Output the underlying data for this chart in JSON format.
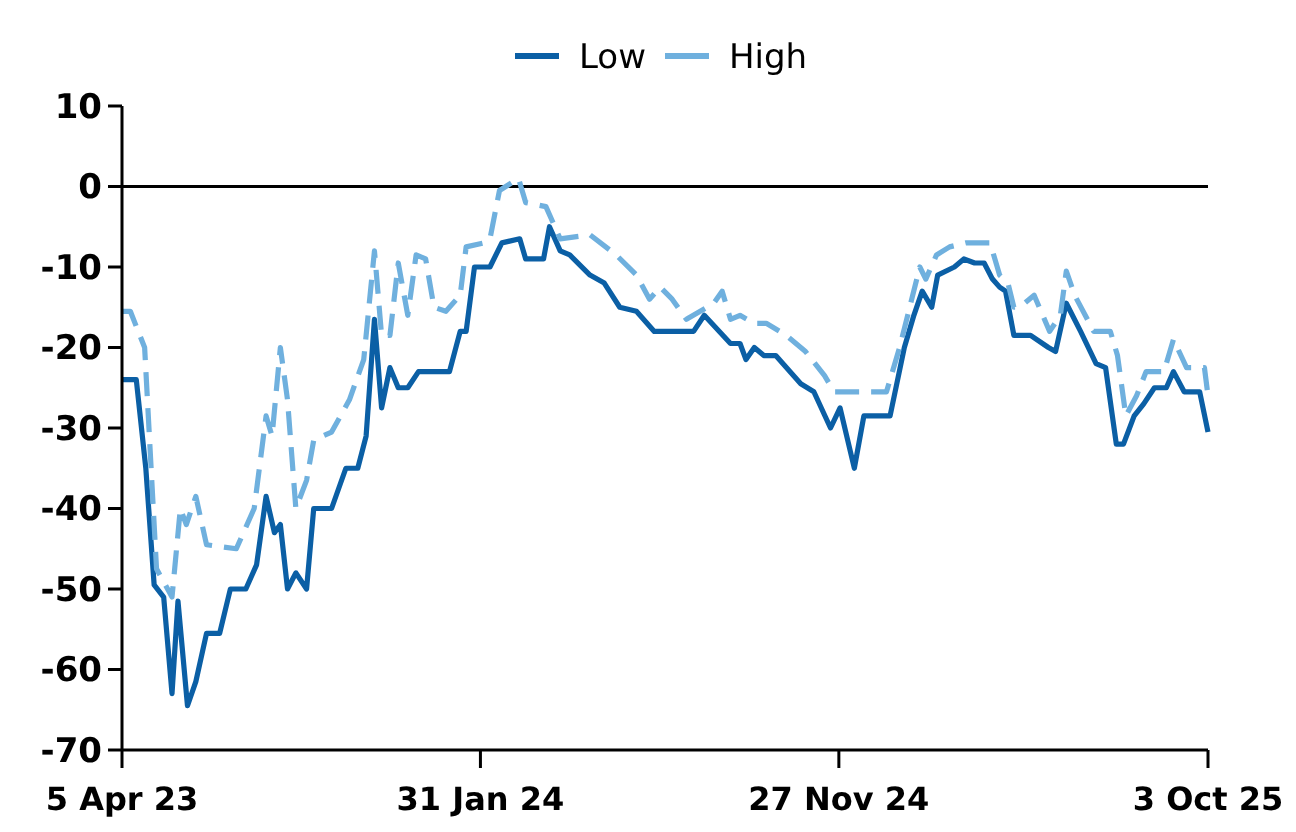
{
  "chart_data": {
    "type": "line",
    "legend": "top",
    "marker": "none",
    "grid": false,
    "xlim": [
      "2023-04-05",
      "2025-10-03"
    ],
    "xticks": [
      {
        "value": "2023-04-05",
        "label": "5 Apr 23"
      },
      {
        "value": "2024-01-31",
        "label": "31 Jan 24"
      },
      {
        "value": "2024-11-27",
        "label": "27 Nov 24"
      },
      {
        "value": "2025-10-03",
        "label": "3 Oct 25"
      }
    ],
    "ylim": [
      -70,
      10
    ],
    "yticks": [
      10,
      0,
      -10,
      -20,
      -30,
      -40,
      -50,
      -60,
      -70
    ],
    "ref_lines": [
      {
        "axis": "y",
        "value": 0,
        "color": "#000000"
      }
    ],
    "series": [
      {
        "name": "Low",
        "color": "#0b5fa5",
        "line_style": "solid",
        "x": [
          "2023-04-05",
          "2023-04-17",
          "2023-04-25",
          "2023-05-02",
          "2023-05-10",
          "2023-05-17",
          "2023-05-22",
          "2023-05-30",
          "2023-06-06",
          "2023-06-15",
          "2023-06-26",
          "2023-07-05",
          "2023-07-18",
          "2023-07-27",
          "2023-08-04",
          "2023-08-11",
          "2023-08-16",
          "2023-08-22",
          "2023-08-29",
          "2023-09-07",
          "2023-09-13",
          "2023-09-28",
          "2023-10-10",
          "2023-10-20",
          "2023-10-27",
          "2023-11-03",
          "2023-11-09",
          "2023-11-16",
          "2023-11-23",
          "2023-12-01",
          "2023-12-10",
          "2024-01-05",
          "2024-01-14",
          "2024-01-19",
          "2024-01-26",
          "2024-02-08",
          "2024-02-18",
          "2024-03-04",
          "2024-03-09",
          "2024-03-24",
          "2024-03-29",
          "2024-04-07",
          "2024-04-15",
          "2024-05-02",
          "2024-05-14",
          "2024-05-27",
          "2024-06-10",
          "2024-06-25",
          "2024-07-28",
          "2024-08-06",
          "2024-08-28",
          "2024-09-05",
          "2024-09-10",
          "2024-09-17",
          "2024-09-25",
          "2024-10-05",
          "2024-10-26",
          "2024-11-06",
          "2024-11-20",
          "2024-11-28",
          "2024-12-10",
          "2024-12-18",
          "2025-01-09",
          "2025-01-21",
          "2025-01-29",
          "2025-02-05",
          "2025-02-13",
          "2025-02-18",
          "2025-03-04",
          "2025-03-12",
          "2025-03-21",
          "2025-03-29",
          "2025-04-05",
          "2025-04-11",
          "2025-04-16",
          "2025-04-23",
          "2025-05-07",
          "2025-05-22",
          "2025-05-28",
          "2025-06-06",
          "2025-06-18",
          "2025-07-01",
          "2025-07-09",
          "2025-07-18",
          "2025-07-24",
          "2025-08-02",
          "2025-08-10",
          "2025-08-19",
          "2025-08-29",
          "2025-09-04",
          "2025-09-13",
          "2025-09-26",
          "2025-10-03"
        ],
        "values": [
          -24,
          -24,
          -35,
          -49.5,
          -51,
          -63,
          -51.5,
          -64.5,
          -61.5,
          -55.5,
          -55.5,
          -50,
          -50,
          -47,
          -38.5,
          -43,
          -42,
          -50,
          -48,
          -50,
          -40,
          -40,
          -35,
          -35,
          -31,
          -16.5,
          -27.5,
          -22.5,
          -25,
          -25,
          -23,
          -23,
          -18,
          -18,
          -10,
          -10,
          -7,
          -6.5,
          -9,
          -9,
          -5,
          -8,
          -8.5,
          -11,
          -12,
          -15,
          -15.5,
          -18,
          -18,
          -16,
          -19.5,
          -19.5,
          -21.5,
          -20,
          -21,
          -21,
          -24.5,
          -25.5,
          -30,
          -27.5,
          -35,
          -28.5,
          -28.5,
          -20,
          -16,
          -13,
          -15,
          -11,
          -10,
          -9,
          -9.5,
          -9.5,
          -11.5,
          -12.5,
          -13,
          -18.5,
          -18.5,
          -20,
          -20.5,
          -14.5,
          -18,
          -22,
          -22.5,
          -32,
          -32,
          -28.5,
          -27,
          -25,
          -25,
          -23,
          -25.5,
          -25.5,
          -30.5
        ]
      },
      {
        "name": "High",
        "color": "#6fb0de",
        "line_style": "dashed",
        "x": [
          "2023-04-05",
          "2023-04-12",
          "2023-04-24",
          "2023-05-04",
          "2023-05-17",
          "2023-05-24",
          "2023-05-29",
          "2023-06-06",
          "2023-06-15",
          "2023-07-10",
          "2023-07-25",
          "2023-08-04",
          "2023-08-09",
          "2023-08-16",
          "2023-08-22",
          "2023-08-29",
          "2023-09-07",
          "2023-09-13",
          "2023-09-28",
          "2023-10-13",
          "2023-10-25",
          "2023-11-03",
          "2023-11-09",
          "2023-11-16",
          "2023-11-23",
          "2023-12-01",
          "2023-12-08",
          "2023-12-16",
          "2023-12-23",
          "2024-01-02",
          "2024-01-14",
          "2024-01-19",
          "2024-02-03",
          "2024-02-08",
          "2024-02-16",
          "2024-03-03",
          "2024-03-09",
          "2024-03-26",
          "2024-04-07",
          "2024-05-02",
          "2024-05-24",
          "2024-06-10",
          "2024-06-21",
          "2024-06-30",
          "2024-07-10",
          "2024-07-22",
          "2024-08-14",
          "2024-08-21",
          "2024-08-28",
          "2024-09-05",
          "2024-09-17",
          "2024-09-27",
          "2024-10-14",
          "2024-10-30",
          "2024-11-15",
          "2024-11-23",
          "2025-01-06",
          "2025-01-17",
          "2025-02-03",
          "2025-02-08",
          "2025-02-17",
          "2025-02-28",
          "2025-03-14",
          "2025-04-03",
          "2025-04-11",
          "2025-04-18",
          "2025-04-23",
          "2025-04-28",
          "2025-05-10",
          "2025-05-23",
          "2025-06-01",
          "2025-06-06",
          "2025-06-13",
          "2025-06-29",
          "2025-07-13",
          "2025-07-19",
          "2025-07-26",
          "2025-08-04",
          "2025-08-12",
          "2025-08-27",
          "2025-09-04",
          "2025-09-15",
          "2025-09-30",
          "2025-10-03"
        ],
        "values": [
          -15.5,
          -15.5,
          -20,
          -47.5,
          -51,
          -40,
          -42,
          -38.5,
          -44.5,
          -45,
          -40,
          -28.5,
          -31,
          -20,
          -26.5,
          -40,
          -36.5,
          -31.5,
          -30.5,
          -26.5,
          -21.5,
          -8,
          -18.5,
          -18.5,
          -9.5,
          -16,
          -8.5,
          -9,
          -15,
          -15.5,
          -13.5,
          -7.5,
          -7,
          -6.5,
          -0.5,
          1,
          -2,
          -2.5,
          -6.5,
          -6,
          -8.5,
          -11,
          -14,
          -12.5,
          -14,
          -16.5,
          -14.5,
          -13,
          -16.5,
          -16,
          -17,
          -17,
          -18.5,
          -20.5,
          -23.5,
          -25.5,
          -25.5,
          -20,
          -10,
          -11.5,
          -8.5,
          -7.5,
          -7,
          -7,
          -11,
          -12,
          -15,
          -15,
          -13.5,
          -18,
          -16,
          -10.5,
          -13.5,
          -18,
          -18,
          -21,
          -28.5,
          -26,
          -23,
          -23,
          -19,
          -22.5,
          -22.5,
          -26
        ]
      }
    ]
  }
}
